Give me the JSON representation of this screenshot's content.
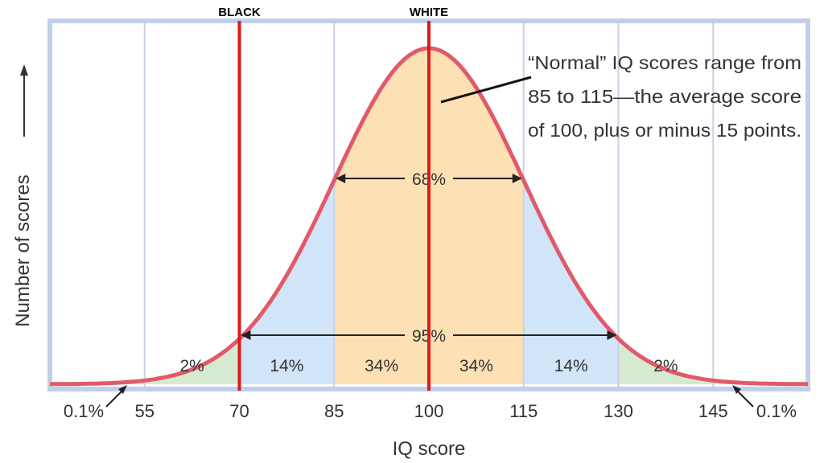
{
  "chart_data": {
    "type": "area",
    "xlabel": "IQ score",
    "ylabel": "Number of scores",
    "xlim": [
      40,
      160
    ],
    "mean": 100,
    "sd": 15,
    "x_ticks": [
      55,
      70,
      85,
      100,
      115,
      130,
      145
    ],
    "tail_labels": [
      "0.1%",
      "0.1%"
    ],
    "band_percents": [
      {
        "from": 55,
        "to": 70,
        "label": "2%"
      },
      {
        "from": 70,
        "to": 85,
        "label": "14%"
      },
      {
        "from": 85,
        "to": 100,
        "label": "34%"
      },
      {
        "from": 100,
        "to": 115,
        "label": "34%"
      },
      {
        "from": 115,
        "to": 130,
        "label": "14%"
      },
      {
        "from": 130,
        "to": 145,
        "label": "2%"
      }
    ],
    "ranges": [
      {
        "from": 85,
        "to": 115,
        "label": "68%"
      },
      {
        "from": 70,
        "to": 130,
        "label": "95%"
      }
    ],
    "markers": [
      {
        "x": 70,
        "label": "BLACK"
      },
      {
        "x": 100,
        "label": "WHITE"
      }
    ],
    "annotation": [
      "“Normal” IQ scores range from",
      "85 to 115—the average score",
      "of 100, plus or minus 15 points."
    ],
    "colors": {
      "curve": "#e05a6a",
      "inner": "#fde0b4",
      "middle": "#d2e4f8",
      "outer": "#d6ead2",
      "frame": "#c2cfe8",
      "grid": "#c8d2e8",
      "marker": "#dd1a1a"
    }
  }
}
